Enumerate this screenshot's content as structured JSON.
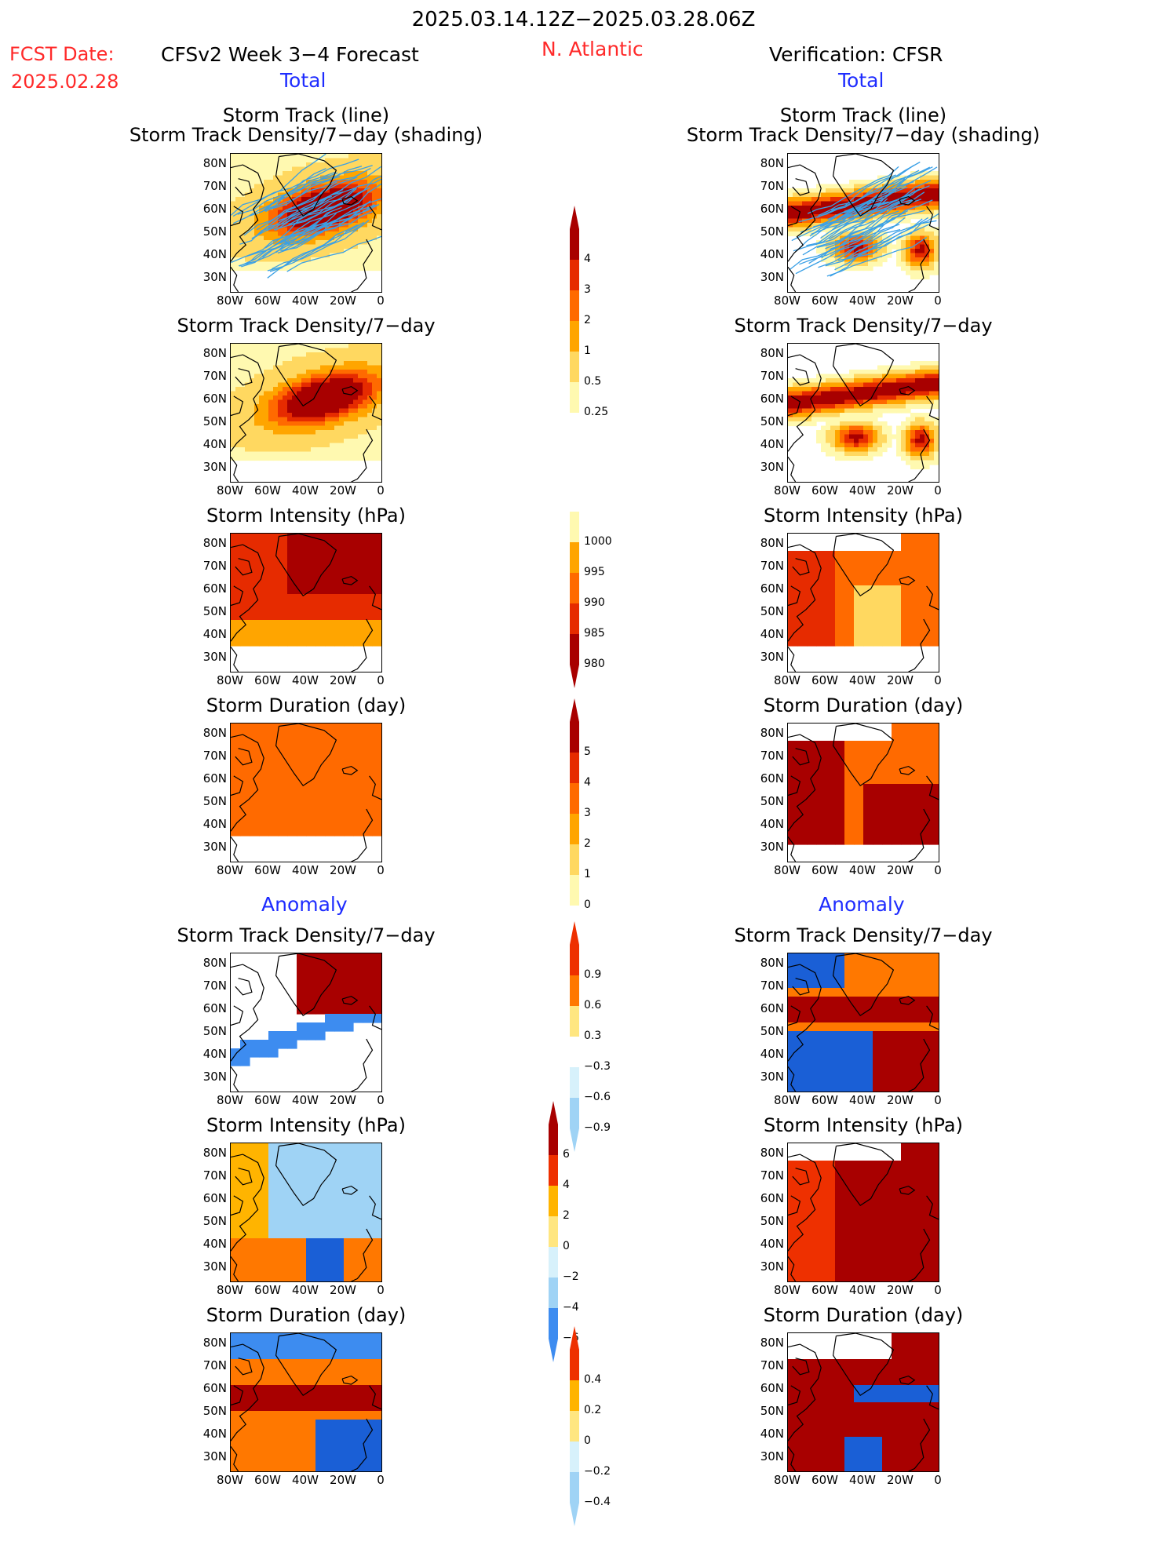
{
  "header": {
    "date_range": "2025.03.14.12Z−2025.03.28.06Z",
    "fcst_label": "FCST Date:",
    "fcst_date": "2025.02.28",
    "model_title": "CFSv2 Week 3−4 Forecast",
    "region": "N. Atlantic",
    "verification": "Verification: CFSR",
    "total_left": "Total",
    "total_right": "Total",
    "anomaly_left": "Anomaly",
    "anomaly_right": "Anomaly"
  },
  "panel_titles": {
    "track_line": "Storm Track (line)",
    "track_shading": "Storm Track Density/7−day (shading)",
    "density": "Storm Track Density/7−day",
    "intensity": "Storm Intensity (hPa)",
    "duration": "Storm Duration (day)"
  },
  "axes": {
    "lat_ticks": [
      "80N",
      "70N",
      "60N",
      "50N",
      "40N",
      "30N"
    ],
    "lon_ticks": [
      "80W",
      "60W",
      "40W",
      "20W",
      "0"
    ]
  },
  "colorbars": {
    "density_total": [
      "4",
      "3",
      "2",
      "1",
      "0.5",
      "0.25"
    ],
    "intensity_total": [
      "1000",
      "995",
      "990",
      "985",
      "980"
    ],
    "duration_total": [
      "5",
      "4",
      "3",
      "2",
      "1",
      "0"
    ],
    "density_anom": [
      "0.9",
      "0.6",
      "0.3",
      "−0.3",
      "−0.6",
      "−0.9"
    ],
    "intensity_anom": [
      "6",
      "4",
      "2",
      "0",
      "−2",
      "−4",
      "−6"
    ],
    "duration_anom": [
      "0.4",
      "0.2",
      "0",
      "−0.2",
      "−0.4"
    ]
  },
  "colors": {
    "seq": [
      "#fff9b0",
      "#ffd860",
      "#ffa500",
      "#ff6a00",
      "#e62b00",
      "#a80000"
    ],
    "div": [
      "#1a5fd6",
      "#3d8cf0",
      "#9fd3f5",
      "#d7f1fb",
      "#ffffff",
      "#ffe680",
      "#ffb400",
      "#ff7800",
      "#ee3000",
      "#a80000"
    ],
    "track_line": "#3aa0e6",
    "header_red": "#ff2a2a",
    "header_blue": "#1e2cff"
  }
}
